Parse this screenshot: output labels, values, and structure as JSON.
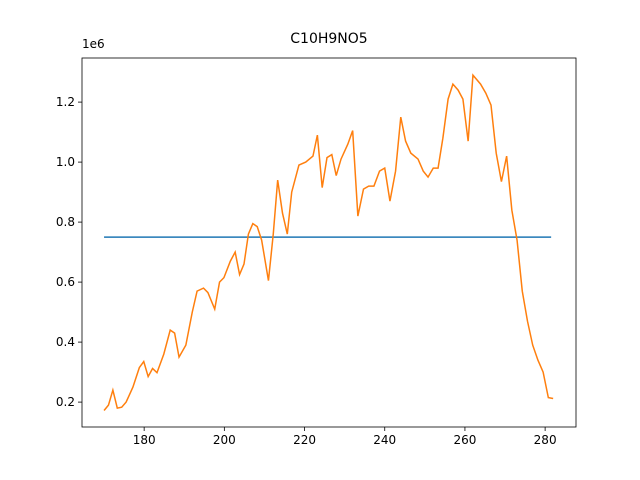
{
  "chart_data": {
    "type": "line",
    "title": "C10H9NO5",
    "y_offset_label": "1e6",
    "xlim": [
      164.5,
      287.7
    ],
    "ylim": [
      0.117,
      1.347
    ],
    "xticks": [
      180,
      200,
      220,
      240,
      260,
      280
    ],
    "yticks": [
      0.2,
      0.4,
      0.6,
      0.8,
      {
        "value": 1,
        "label": "1.0"
      },
      1.2
    ],
    "series": [
      {
        "color": "#1f77b4",
        "x": [
          170,
          281.5
        ],
        "values": [
          0.75,
          0.75
        ]
      },
      {
        "color": "#ff7f0e",
        "x": [
          170,
          171.1,
          172.2,
          173.3,
          174.4,
          175.5,
          177.2,
          178.8,
          179.9,
          181,
          182.1,
          183.2,
          184.9,
          186.5,
          187.6,
          188.7,
          190.4,
          192,
          193.2,
          194.8,
          195.9,
          197.6,
          198.8,
          199.9,
          201.5,
          202.7,
          203.8,
          204.9,
          206,
          207.1,
          208.2,
          209.3,
          211,
          212.2,
          213.3,
          214.5,
          215.7,
          216.8,
          218.6,
          220.3,
          222.1,
          223.2,
          224.4,
          225.6,
          226.8,
          227.9,
          229.1,
          230.8,
          232,
          233.3,
          234.7,
          236,
          237.3,
          238.7,
          240,
          241.3,
          242.7,
          244,
          245.2,
          246.5,
          248.3,
          249.6,
          250.8,
          252.1,
          253.3,
          254.5,
          255.8,
          257,
          258.3,
          259.5,
          260.8,
          262,
          263.9,
          265.2,
          266.5,
          267.8,
          269.1,
          270.4,
          271.7,
          273,
          274.3,
          275.6,
          276.9,
          278.2,
          279.5,
          280.8,
          282
        ],
        "values": [
          0.172,
          0.19,
          0.24,
          0.18,
          0.183,
          0.2,
          0.25,
          0.315,
          0.335,
          0.285,
          0.312,
          0.298,
          0.36,
          0.44,
          0.43,
          0.35,
          0.39,
          0.5,
          0.57,
          0.58,
          0.565,
          0.51,
          0.6,
          0.615,
          0.67,
          0.7,
          0.625,
          0.66,
          0.76,
          0.795,
          0.785,
          0.74,
          0.605,
          0.76,
          0.94,
          0.83,
          0.76,
          0.9,
          0.99,
          1.0,
          1.02,
          1.09,
          0.915,
          1.015,
          1.025,
          0.955,
          1.01,
          1.06,
          1.105,
          0.82,
          0.91,
          0.92,
          0.92,
          0.97,
          0.98,
          0.87,
          0.97,
          1.15,
          1.07,
          1.03,
          1.01,
          0.97,
          0.95,
          0.98,
          0.98,
          1.08,
          1.21,
          1.26,
          1.24,
          1.21,
          1.07,
          1.29,
          1.26,
          1.23,
          1.19,
          1.03,
          0.935,
          1.02,
          0.84,
          0.74,
          0.57,
          0.47,
          0.39,
          0.34,
          0.3,
          0.215,
          0.212
        ]
      }
    ]
  }
}
